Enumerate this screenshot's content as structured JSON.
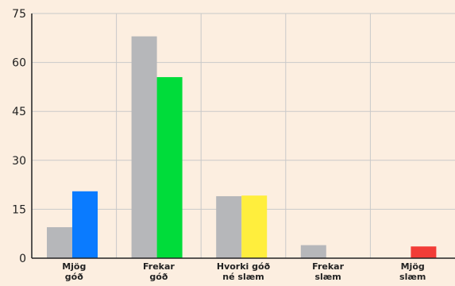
{
  "chart_data": {
    "type": "bar",
    "categories": [
      [
        "Mjög",
        "góð"
      ],
      [
        "Frekar",
        "góð"
      ],
      [
        "Hvorki góð",
        "né slæm"
      ],
      [
        "Frekar",
        "slæm"
      ],
      [
        "Mjög",
        "slæm"
      ]
    ],
    "series": [
      {
        "values": [
          9.5,
          68,
          19,
          4,
          0
        ],
        "color": "#b6b7ba"
      },
      {
        "values": [
          20.5,
          55.5,
          19.2,
          0,
          3.6
        ],
        "colors": [
          "#0a7bff",
          "#00dc3a",
          "#ffee3d",
          "#00dc3a",
          "#f23c37"
        ]
      }
    ],
    "yticks": [
      0,
      15,
      30,
      45,
      60,
      75
    ],
    "ylim": [
      0,
      75
    ],
    "grid": true,
    "legend": "none",
    "colors": {
      "background": "#fceee0",
      "grid": "#c9c9c9",
      "axis": "#222222"
    }
  }
}
